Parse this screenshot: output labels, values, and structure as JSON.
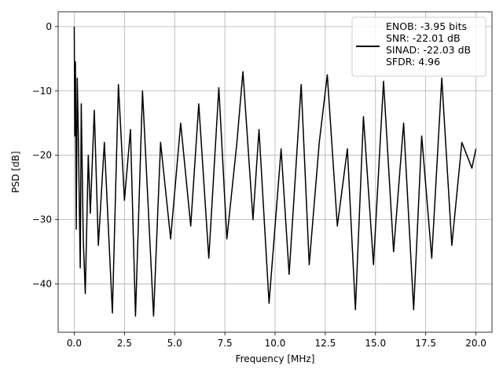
{
  "chart_data": {
    "type": "line",
    "title": "",
    "xlabel": "Frequency [MHz]",
    "ylabel": "PSD [dB]",
    "xlim": [
      -0.8,
      20.8
    ],
    "ylim": [
      -47.5,
      2.3
    ],
    "xticks": [
      0.0,
      2.5,
      5.0,
      7.5,
      10.0,
      12.5,
      15.0,
      17.5,
      20.0
    ],
    "xtick_labels": [
      "0.0",
      "2.5",
      "5.0",
      "7.5",
      "10.0",
      "12.5",
      "15.0",
      "17.5",
      "20.0"
    ],
    "yticks": [
      0,
      -10,
      -20,
      -30,
      -40
    ],
    "ytick_labels": [
      "0",
      "−10",
      "−20",
      "−30",
      "−40"
    ],
    "grid": true,
    "legend_position": "top-right",
    "legend_lines": [
      "ENOB: -3.95 bits",
      "SNR: -22.01 dB",
      "SINAD: -22.03 dB",
      "SFDR: 4.96"
    ],
    "series": [
      {
        "color": "#000000",
        "x": [
          0.0,
          0.03,
          0.06,
          0.1,
          0.15,
          0.2,
          0.3,
          0.35,
          0.45,
          0.55,
          0.7,
          0.8,
          1.0,
          1.2,
          1.5,
          1.9,
          2.2,
          2.5,
          2.8,
          3.05,
          3.4,
          3.95,
          4.3,
          4.8,
          5.3,
          5.8,
          6.2,
          6.7,
          7.2,
          7.6,
          8.1,
          8.4,
          8.9,
          9.2,
          9.7,
          10.3,
          10.7,
          11.3,
          11.7,
          12.2,
          12.6,
          13.1,
          13.6,
          14.0,
          14.4,
          14.9,
          15.4,
          15.9,
          16.4,
          16.9,
          17.3,
          17.8,
          18.3,
          18.8,
          19.3,
          19.8,
          20.0
        ],
        "y": [
          0.0,
          -17.0,
          -5.5,
          -31.5,
          -8.0,
          -16.0,
          -37.5,
          -12.0,
          -33.0,
          -41.5,
          -20.0,
          -29.0,
          -13.0,
          -34.0,
          -18.0,
          -44.5,
          -9.0,
          -27.0,
          -16.0,
          -45.0,
          -10.0,
          -45.0,
          -18.0,
          -33.0,
          -15.0,
          -31.0,
          -12.0,
          -36.0,
          -9.5,
          -33.0,
          -18.0,
          -7.0,
          -30.0,
          -16.0,
          -43.0,
          -19.0,
          -38.5,
          -9.0,
          -37.0,
          -18.0,
          -7.5,
          -31.0,
          -19.0,
          -44.0,
          -14.0,
          -37.0,
          -8.5,
          -35.0,
          -15.0,
          -44.0,
          -17.0,
          -36.0,
          -8.0,
          -34.0,
          -18.0,
          -22.0,
          -19.0
        ]
      }
    ]
  }
}
